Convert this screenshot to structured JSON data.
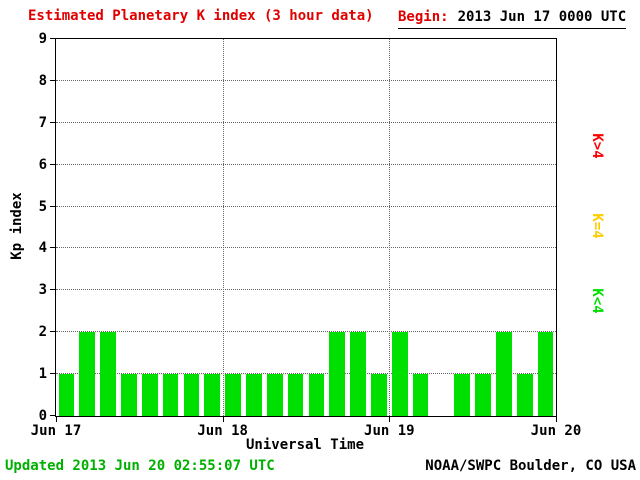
{
  "header": {
    "title": "Estimated Planetary K index (3 hour data)",
    "begin_label": "Begin:",
    "begin_value": "2013 Jun 17 0000 UTC"
  },
  "chart_data": {
    "type": "bar",
    "title": "Estimated Planetary K index (3 hour data)",
    "ylabel": "Kp index",
    "xlabel": "Universal Time",
    "ylim": [
      0,
      9
    ],
    "y_ticks": [
      0,
      1,
      2,
      3,
      4,
      5,
      6,
      7,
      8,
      9
    ],
    "x_tick_labels": [
      "Jun 17",
      "Jun 18",
      "Jun 19",
      "Jun 20"
    ],
    "bars_per_day": 8,
    "interval_hours": 3,
    "values": [
      1,
      2,
      2,
      1,
      1,
      1,
      1,
      1,
      1,
      1,
      1,
      1,
      1,
      2,
      2,
      1,
      2,
      1,
      0,
      1,
      1,
      2,
      1,
      2
    ],
    "grid": "dotted",
    "legend_position": "right",
    "legend": [
      {
        "label": "K>4",
        "color": "#ff0000"
      },
      {
        "label": "K=4",
        "color": "#ffcc00"
      },
      {
        "label": "K<4",
        "color": "#00e000"
      }
    ]
  },
  "footer": {
    "updated": "Updated 2013 Jun 20 02:55:07 UTC",
    "credit": "NOAA/SWPC Boulder, CO USA"
  }
}
